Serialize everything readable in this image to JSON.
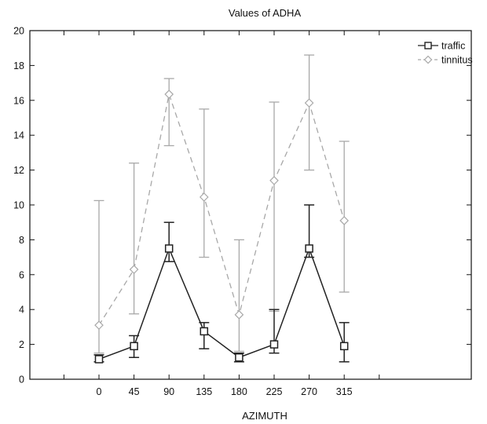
{
  "chart_data": {
    "type": "line",
    "title": "Values of ADHA",
    "xlabel": "AZIMUTH",
    "ylabel": "",
    "categories": [
      "0",
      "45",
      "90",
      "135",
      "180",
      "225",
      "270",
      "315"
    ],
    "ylim": [
      0,
      20
    ],
    "yticks": [
      0,
      2,
      4,
      6,
      8,
      10,
      12,
      14,
      16,
      18,
      20
    ],
    "grid": false,
    "legend": "top-right",
    "series": [
      {
        "name": "traffic",
        "color": "#222222",
        "dash": "solid",
        "marker": "square",
        "values": [
          1.15,
          1.9,
          7.5,
          2.75,
          1.25,
          2.0,
          7.5,
          1.9
        ],
        "err_low": [
          1.0,
          1.25,
          6.75,
          1.75,
          1.0,
          1.5,
          7.0,
          1.0
        ],
        "err_high": [
          1.4,
          2.5,
          9.0,
          3.25,
          1.5,
          4.0,
          10.0,
          3.25
        ]
      },
      {
        "name": "tinnitus",
        "color": "#a8a8a8",
        "dash": "dashed",
        "marker": "diamond",
        "values": [
          3.1,
          6.3,
          16.35,
          10.45,
          3.7,
          11.4,
          15.85,
          9.1
        ],
        "err_low": [
          1.5,
          3.75,
          13.4,
          7.0,
          1.6,
          3.9,
          12.0,
          5.0
        ],
        "err_high": [
          10.25,
          12.4,
          17.25,
          15.5,
          8.0,
          15.9,
          18.6,
          13.65
        ]
      }
    ]
  }
}
